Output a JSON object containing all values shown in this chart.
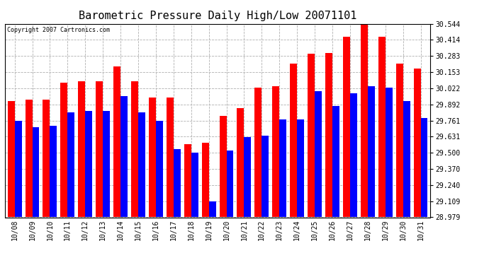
{
  "title": "Barometric Pressure Daily High/Low 20071101",
  "copyright": "Copyright 2007 Cartronics.com",
  "dates": [
    "10/08",
    "10/09",
    "10/10",
    "10/11",
    "10/12",
    "10/13",
    "10/14",
    "10/15",
    "10/16",
    "10/17",
    "10/18",
    "10/19",
    "10/20",
    "10/21",
    "10/22",
    "10/23",
    "10/24",
    "10/25",
    "10/26",
    "10/27",
    "10/28",
    "10/29",
    "10/30",
    "10/31"
  ],
  "highs": [
    29.92,
    29.93,
    29.93,
    30.07,
    30.08,
    30.08,
    30.2,
    30.08,
    29.95,
    29.95,
    29.57,
    29.58,
    29.8,
    29.86,
    30.03,
    30.04,
    30.22,
    30.3,
    30.31,
    30.44,
    30.56,
    30.44,
    30.22,
    30.18
  ],
  "lows": [
    29.76,
    29.71,
    29.72,
    29.83,
    29.84,
    29.84,
    29.96,
    29.83,
    29.76,
    29.53,
    29.5,
    29.11,
    29.52,
    29.63,
    29.64,
    29.77,
    29.77,
    30.0,
    29.88,
    29.98,
    30.04,
    30.03,
    29.92,
    29.78
  ],
  "high_color": "#ff0000",
  "low_color": "#0000ff",
  "bg_color": "#ffffff",
  "yticks": [
    28.979,
    29.109,
    29.24,
    29.37,
    29.5,
    29.631,
    29.761,
    29.892,
    30.022,
    30.153,
    30.283,
    30.414,
    30.544
  ],
  "ymin": 28.979,
  "ymax": 30.544,
  "grid_color": "#b0b0b0",
  "title_fontsize": 11,
  "tick_fontsize": 7,
  "bar_width": 0.4
}
